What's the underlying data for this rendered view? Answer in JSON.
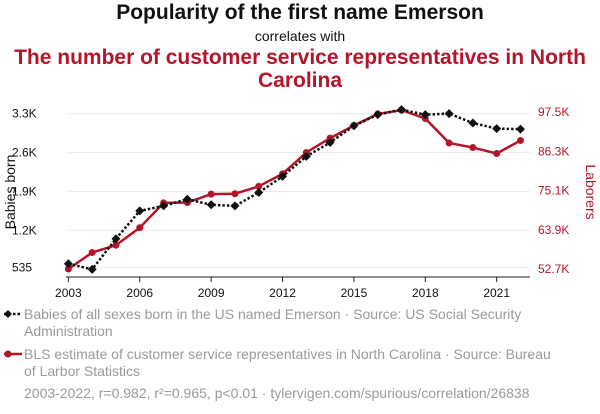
{
  "header": {
    "title": "Popularity of the first name Emerson",
    "connector": "correlates with",
    "subtitle": "The number of customer service representatives in North Carolina"
  },
  "chart_data": {
    "type": "line",
    "x": [
      2003,
      2004,
      2005,
      2006,
      2007,
      2008,
      2009,
      2010,
      2011,
      2012,
      2013,
      2014,
      2015,
      2016,
      2017,
      2018,
      2019,
      2020,
      2021,
      2022
    ],
    "series": [
      {
        "name": "Babies of all sexes born in the US named Emerson · Source: US Social Security Administration",
        "axis": "left",
        "color": "#111111",
        "style": "dotted-diamond",
        "values": [
          600,
          500,
          1050,
          1550,
          1640,
          1760,
          1660,
          1640,
          1880,
          2170,
          2530,
          2780,
          3080,
          3280,
          3370,
          3280,
          3300,
          3130,
          3030,
          3020
        ]
      },
      {
        "name": "BLS estimate of customer service representatives in North Carolina · Source: Bureau of Larbor Statistics",
        "axis": "right",
        "color": "#b5152b",
        "style": "solid-circle",
        "values": [
          52700,
          57400,
          59500,
          64500,
          71600,
          71700,
          74100,
          74200,
          76300,
          79900,
          86000,
          90100,
          93700,
          97000,
          98100,
          95700,
          88700,
          87400,
          85700,
          89400
        ]
      }
    ],
    "left_axis": {
      "label": "Babies born",
      "range": [
        380,
        3400
      ],
      "ticks": [
        535,
        1200,
        1900,
        2600,
        3300
      ],
      "tick_labels": [
        "535",
        "1.2K",
        "1.9K",
        "2.6K",
        "3.3K"
      ]
    },
    "right_axis": {
      "label": "Laborers",
      "range": [
        50700,
        98700
      ],
      "ticks": [
        52700,
        63900,
        75100,
        86300,
        97500
      ],
      "tick_labels": [
        "52.7K",
        "63.9K",
        "75.1K",
        "86.3K",
        "97.5K"
      ]
    },
    "x_ticks": [
      "2003",
      "2006",
      "2009",
      "2012",
      "2015",
      "2018",
      "2021"
    ],
    "x_tick_values": [
      2003,
      2006,
      2009,
      2012,
      2015,
      2018,
      2021
    ],
    "x_range": [
      2002.9,
      2022.4
    ],
    "grid": true,
    "legend_position": "bottom"
  },
  "footer": {
    "stats": "2003-2022, r=0.982, r²=0.965, p<0.01 · tylervigen.com/spurious/correlation/26838"
  }
}
